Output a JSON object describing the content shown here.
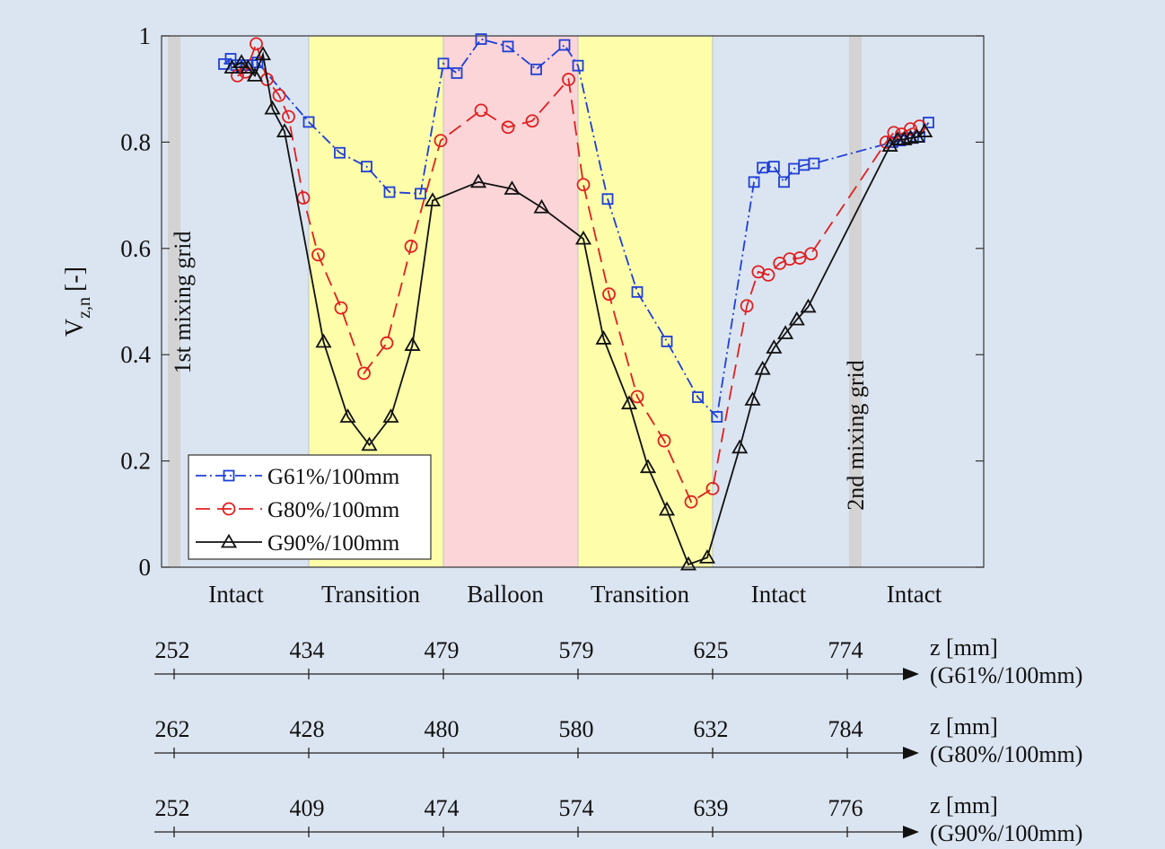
{
  "chart_data": {
    "type": "line",
    "title": "",
    "xlabel": "",
    "ylabel": "V",
    "ylabel_sub": "z,n",
    "ylabel_unit": "[-]",
    "ylim": [
      0,
      1
    ],
    "yticks": [
      "0",
      "0.2",
      "0.4",
      "0.6",
      "0.8",
      "1"
    ],
    "grid": false,
    "legend_position": "bottom-left",
    "regions": [
      {
        "name": "Intact",
        "color": "#dbe5f1"
      },
      {
        "name": "Transition",
        "color": "#fdfdaa"
      },
      {
        "name": "Balloon",
        "color": "#fcd5d8"
      },
      {
        "name": "Transition",
        "color": "#fdfdaa"
      },
      {
        "name": "Intact",
        "color": "#dbe5f1"
      },
      {
        "name": "Intact",
        "color": "#dbe5f1"
      }
    ],
    "region_bounds": [
      0,
      1,
      2,
      3,
      4,
      5,
      6
    ],
    "grids": [
      {
        "label": "1st mixing grid",
        "position": 0
      },
      {
        "label": "2nd mixing grid",
        "position": 5
      }
    ],
    "series": [
      {
        "name": "G61%/100mm",
        "color": "#1f3fd6",
        "marker": "square",
        "dash": "12 4 2 4",
        "points": [
          [
            0.37,
            0.947
          ],
          [
            0.42,
            0.957
          ],
          [
            0.46,
            0.945
          ],
          [
            0.5,
            0.94
          ],
          [
            0.54,
            0.945
          ],
          [
            0.58,
            0.945
          ],
          [
            0.62,
            0.95
          ],
          [
            1.0,
            0.838
          ],
          [
            1.23,
            0.78
          ],
          [
            1.43,
            0.754
          ],
          [
            1.6,
            0.706
          ],
          [
            1.83,
            0.703
          ],
          [
            2.0,
            0.948
          ],
          [
            2.1,
            0.93
          ],
          [
            2.28,
            0.994
          ],
          [
            2.48,
            0.98
          ],
          [
            2.69,
            0.937
          ],
          [
            2.9,
            0.983
          ],
          [
            3.0,
            0.944
          ],
          [
            3.22,
            0.693
          ],
          [
            3.44,
            0.518
          ],
          [
            3.66,
            0.425
          ],
          [
            3.89,
            0.32
          ],
          [
            4.03,
            0.283
          ],
          [
            4.29,
            0.725
          ],
          [
            4.35,
            0.752
          ],
          [
            4.43,
            0.754
          ],
          [
            4.5,
            0.725
          ],
          [
            4.57,
            0.75
          ],
          [
            4.64,
            0.757
          ],
          [
            4.71,
            0.76
          ],
          [
            5.29,
            0.8
          ],
          [
            5.35,
            0.803
          ],
          [
            5.4,
            0.807
          ],
          [
            5.45,
            0.808
          ],
          [
            5.5,
            0.81
          ],
          [
            5.57,
            0.837
          ]
        ]
      },
      {
        "name": "G80%/100mm",
        "color": "#e02020",
        "marker": "circle",
        "dash": "16 8",
        "points": [
          [
            0.47,
            0.925
          ],
          [
            0.53,
            0.932
          ],
          [
            0.61,
            0.985
          ],
          [
            0.69,
            0.918
          ],
          [
            0.78,
            0.888
          ],
          [
            0.85,
            0.848
          ],
          [
            0.96,
            0.695
          ],
          [
            1.07,
            0.588
          ],
          [
            1.24,
            0.488
          ],
          [
            1.41,
            0.365
          ],
          [
            1.58,
            0.422
          ],
          [
            1.76,
            0.604
          ],
          [
            1.98,
            0.803
          ],
          [
            2.28,
            0.86
          ],
          [
            2.48,
            0.828
          ],
          [
            2.66,
            0.84
          ],
          [
            2.93,
            0.918
          ],
          [
            3.04,
            0.72
          ],
          [
            3.23,
            0.514
          ],
          [
            3.44,
            0.321
          ],
          [
            3.64,
            0.238
          ],
          [
            3.84,
            0.123
          ],
          [
            4.0,
            0.148
          ],
          [
            4.24,
            0.492
          ],
          [
            4.32,
            0.556
          ],
          [
            4.39,
            0.55
          ],
          [
            4.47,
            0.572
          ],
          [
            4.54,
            0.58
          ],
          [
            4.61,
            0.582
          ],
          [
            4.69,
            0.59
          ],
          [
            5.24,
            0.8
          ],
          [
            5.3,
            0.818
          ],
          [
            5.36,
            0.815
          ],
          [
            5.43,
            0.825
          ],
          [
            5.5,
            0.83
          ]
        ]
      },
      {
        "name": "G90%/100mm",
        "color": "#111111",
        "marker": "triangle",
        "dash": "",
        "points": [
          [
            0.43,
            0.94
          ],
          [
            0.5,
            0.95
          ],
          [
            0.55,
            0.94
          ],
          [
            0.6,
            0.925
          ],
          [
            0.66,
            0.965
          ],
          [
            0.73,
            0.863
          ],
          [
            0.82,
            0.82
          ],
          [
            1.11,
            0.424
          ],
          [
            1.29,
            0.283
          ],
          [
            1.45,
            0.23
          ],
          [
            1.61,
            0.283
          ],
          [
            1.77,
            0.418
          ],
          [
            1.92,
            0.69
          ],
          [
            2.26,
            0.725
          ],
          [
            2.51,
            0.712
          ],
          [
            2.73,
            0.677
          ],
          [
            3.04,
            0.618
          ],
          [
            3.19,
            0.43
          ],
          [
            3.38,
            0.308
          ],
          [
            3.52,
            0.188
          ],
          [
            3.66,
            0.108
          ],
          [
            3.82,
            0.005
          ],
          [
            3.96,
            0.018
          ],
          [
            4.19,
            0.225
          ],
          [
            4.28,
            0.315
          ],
          [
            4.35,
            0.373
          ],
          [
            4.43,
            0.413
          ],
          [
            4.51,
            0.44
          ],
          [
            4.59,
            0.466
          ],
          [
            4.67,
            0.49
          ],
          [
            5.27,
            0.793
          ],
          [
            5.33,
            0.805
          ],
          [
            5.38,
            0.805
          ],
          [
            5.43,
            0.808
          ],
          [
            5.48,
            0.81
          ],
          [
            5.54,
            0.82
          ]
        ]
      }
    ],
    "z_axes": [
      {
        "unit": "z [mm]",
        "series": "(G61%/100mm)",
        "ticks": [
          "252",
          "434",
          "479",
          "579",
          "625",
          "774"
        ]
      },
      {
        "unit": "z [mm]",
        "series": "(G80%/100mm)",
        "ticks": [
          "262",
          "428",
          "480",
          "580",
          "632",
          "784"
        ]
      },
      {
        "unit": "z [mm]",
        "series": "(G90%/100mm)",
        "ticks": [
          "252",
          "409",
          "474",
          "574",
          "639",
          "776"
        ]
      }
    ]
  }
}
